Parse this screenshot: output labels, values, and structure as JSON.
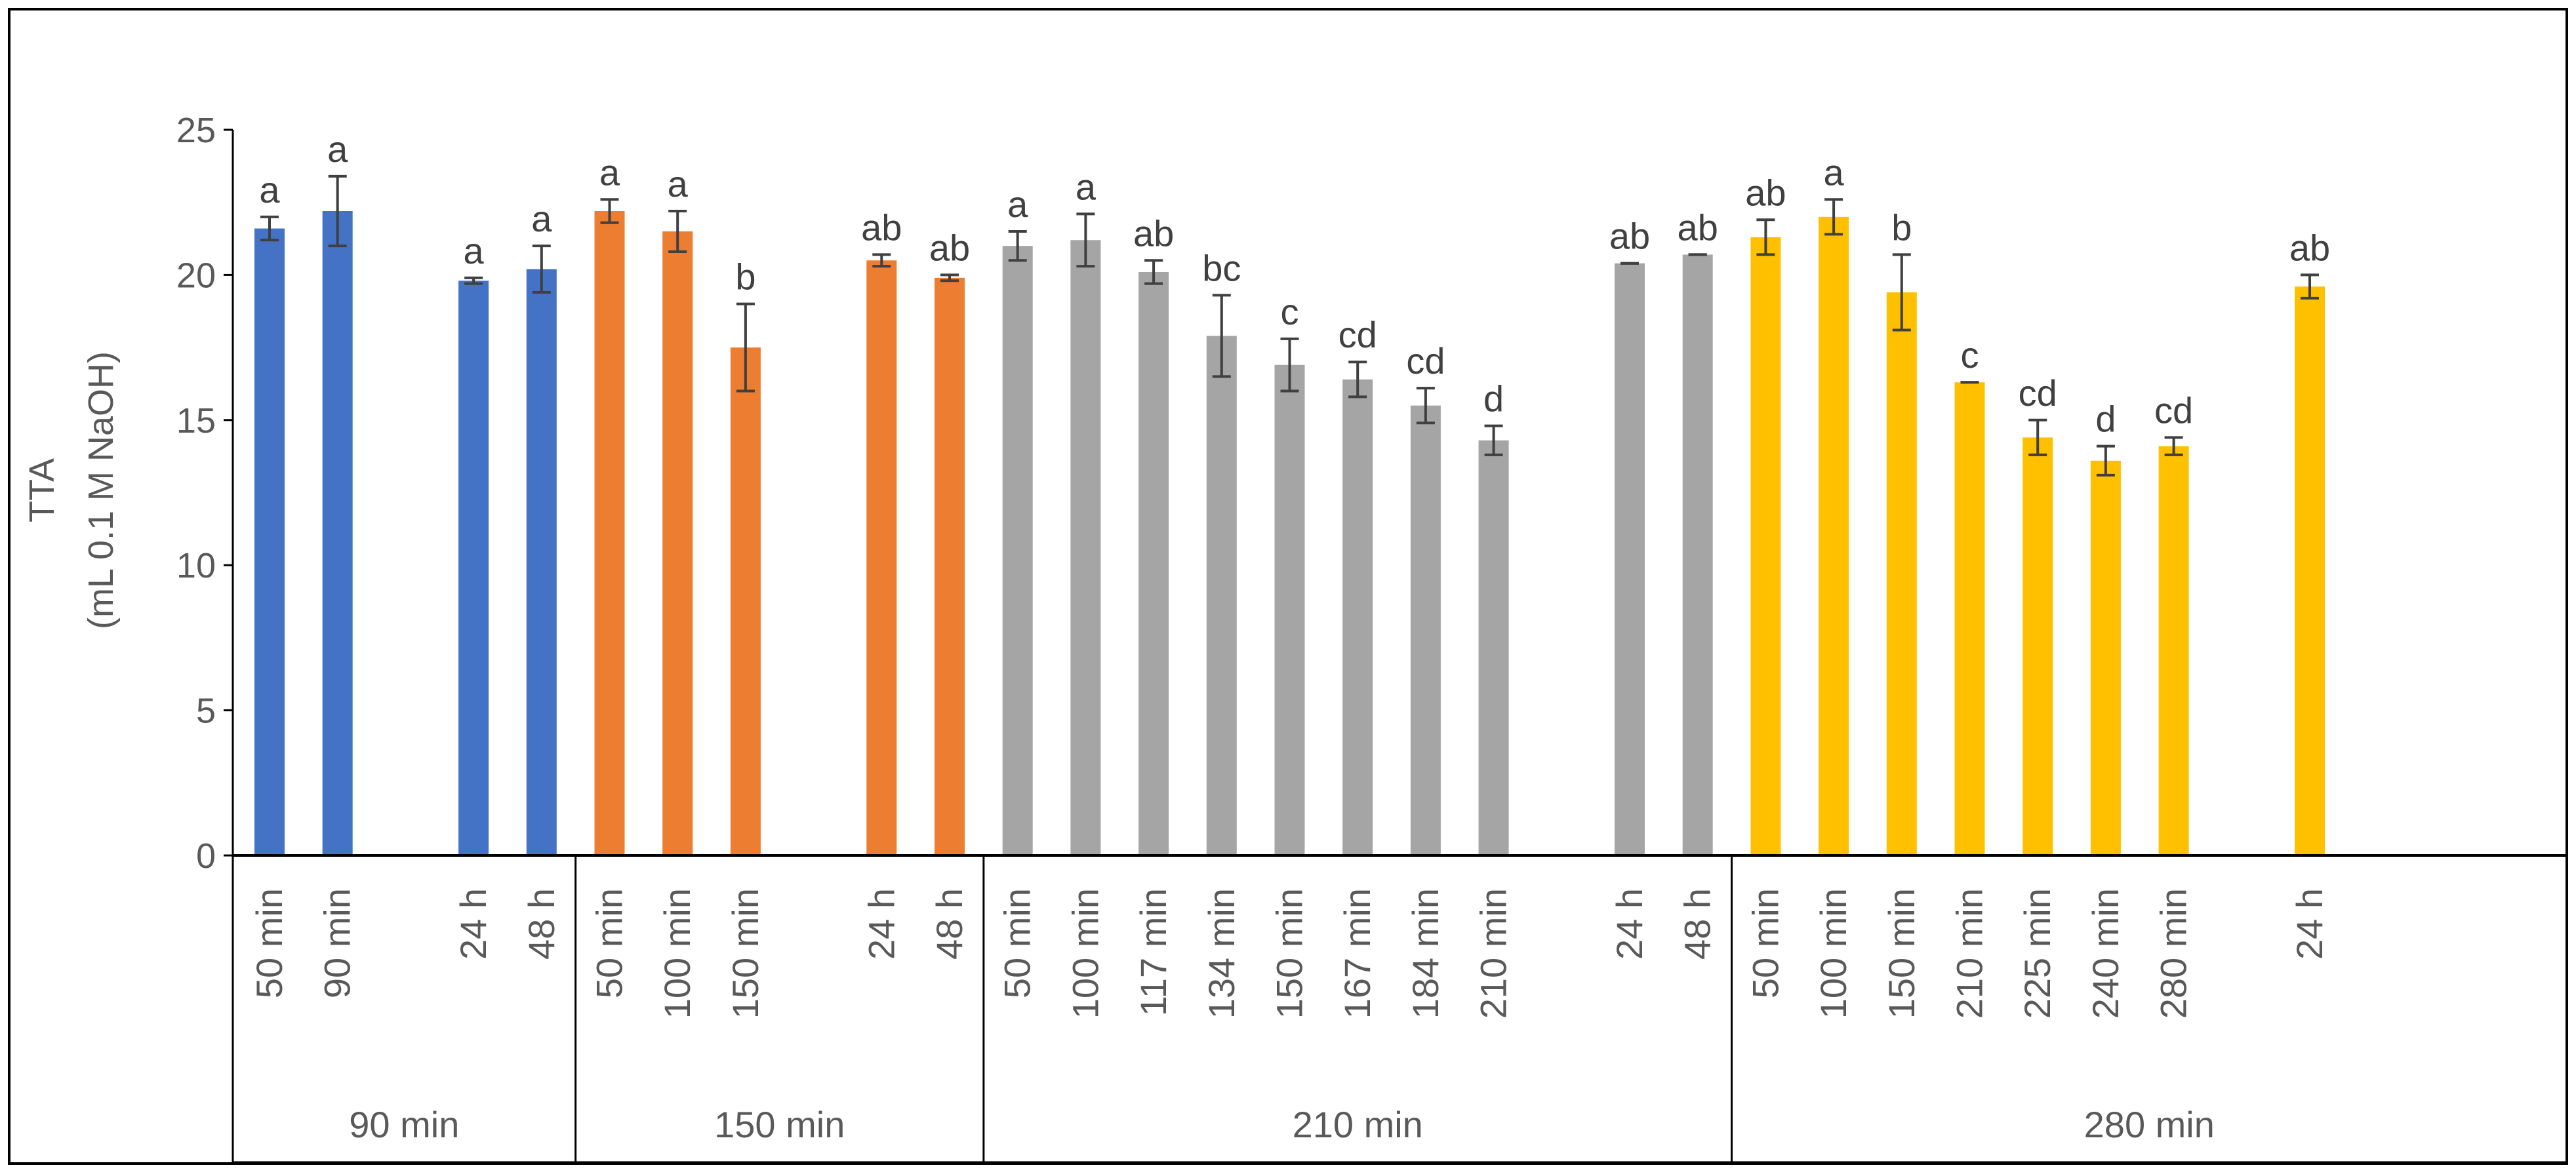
{
  "chart_data": {
    "type": "bar",
    "ylabel_line1": "TTA",
    "ylabel_line2": "(mL 0.1 M NaOH)",
    "ylim": [
      0,
      25
    ],
    "yticks": [
      0,
      5,
      10,
      15,
      20,
      25
    ],
    "grid": false,
    "legend": "none",
    "groups": [
      {
        "label": "90 min",
        "color": "#4472C4",
        "bars": [
          {
            "category": "50 min",
            "value": 21.6,
            "error": 0.4,
            "letter": "a"
          },
          {
            "category": "90 min",
            "value": 22.2,
            "error": 1.2,
            "letter": "a"
          },
          {
            "category": "",
            "value": null,
            "error": null,
            "letter": ""
          },
          {
            "category": "24 h",
            "value": 19.8,
            "error": 0.1,
            "letter": "a"
          },
          {
            "category": "48 h",
            "value": 20.2,
            "error": 0.8,
            "letter": "a"
          }
        ]
      },
      {
        "label": "150 min",
        "color": "#ED7D31",
        "bars": [
          {
            "category": "50 min",
            "value": 22.2,
            "error": 0.4,
            "letter": "a"
          },
          {
            "category": "100 min",
            "value": 21.5,
            "error": 0.7,
            "letter": "a"
          },
          {
            "category": "150 min",
            "value": 17.5,
            "error": 1.5,
            "letter": "b"
          },
          {
            "category": "",
            "value": null,
            "error": null,
            "letter": ""
          },
          {
            "category": "24 h",
            "value": 20.5,
            "error": 0.2,
            "letter": "ab"
          },
          {
            "category": "48 h",
            "value": 19.9,
            "error": 0.1,
            "letter": "ab"
          }
        ]
      },
      {
        "label": "210 min",
        "color": "#A5A5A5",
        "bars": [
          {
            "category": "50 min",
            "value": 21.0,
            "error": 0.5,
            "letter": "a"
          },
          {
            "category": "100 min",
            "value": 21.2,
            "error": 0.9,
            "letter": "a"
          },
          {
            "category": "117 min",
            "value": 20.1,
            "error": 0.4,
            "letter": "ab"
          },
          {
            "category": "134 min",
            "value": 17.9,
            "error": 1.4,
            "letter": "bc"
          },
          {
            "category": "150 min",
            "value": 16.9,
            "error": 0.9,
            "letter": "c"
          },
          {
            "category": "167 min",
            "value": 16.4,
            "error": 0.6,
            "letter": "cd"
          },
          {
            "category": "184 min",
            "value": 15.5,
            "error": 0.6,
            "letter": "cd"
          },
          {
            "category": "210 min",
            "value": 14.3,
            "error": 0.5,
            "letter": "d"
          },
          {
            "category": "",
            "value": null,
            "error": null,
            "letter": ""
          },
          {
            "category": "24 h",
            "value": 20.4,
            "error": 0.0,
            "letter": "ab"
          },
          {
            "category": "48 h",
            "value": 20.7,
            "error": 0.0,
            "letter": "ab"
          }
        ]
      },
      {
        "label": "280 min",
        "color": "#FFC000",
        "bars": [
          {
            "category": "50 min",
            "value": 21.3,
            "error": 0.6,
            "letter": "ab"
          },
          {
            "category": "100 min",
            "value": 22.0,
            "error": 0.6,
            "letter": "a"
          },
          {
            "category": "150 min",
            "value": 19.4,
            "error": 1.3,
            "letter": "b"
          },
          {
            "category": "210 min",
            "value": 16.3,
            "error": 0.0,
            "letter": "c"
          },
          {
            "category": "225 min",
            "value": 14.4,
            "error": 0.6,
            "letter": "cd"
          },
          {
            "category": "240 min",
            "value": 13.6,
            "error": 0.5,
            "letter": "d"
          },
          {
            "category": "280 min",
            "value": 14.1,
            "error": 0.3,
            "letter": "cd"
          },
          {
            "category": "",
            "value": null,
            "error": null,
            "letter": ""
          },
          {
            "category": "24 h",
            "value": 19.6,
            "error": 0.4,
            "letter": "ab"
          }
        ]
      }
    ]
  },
  "colors": {
    "axis": "#000000",
    "tick_text": "#595959",
    "error_bar": "#404040",
    "letter_text": "#404040"
  }
}
